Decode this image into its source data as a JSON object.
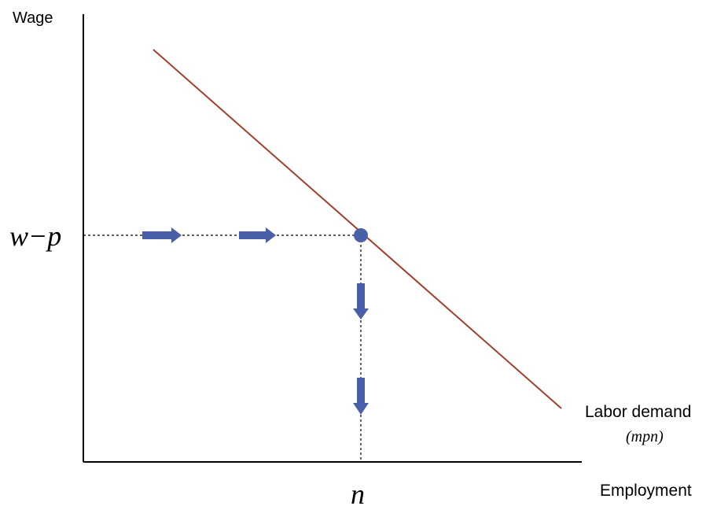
{
  "labels": {
    "y_axis": "Wage",
    "x_axis": "Employment",
    "wage_level": "w−p",
    "employment_level": "n",
    "curve_name": "Labor demand",
    "curve_formula": "(mpn)"
  },
  "colors": {
    "axis": "#000000",
    "demand_curve": "#a0402a",
    "arrows": "#4a5faa",
    "point": "#4a5faa",
    "guide_lines": "#000000"
  },
  "icons": {
    "equilibrium_point": "filled-circle",
    "horizontal_arrows": "right-arrow",
    "vertical_arrows": "down-arrow"
  }
}
